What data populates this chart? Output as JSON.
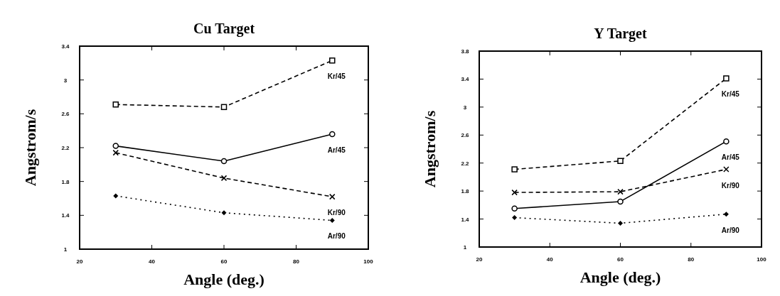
{
  "chart_data": [
    {
      "type": "line",
      "title": "Cu  Target",
      "xlabel": "Angle (deg.)",
      "ylabel": "Angstrom/s",
      "x": [
        30,
        60,
        90
      ],
      "xlim": [
        20,
        100
      ],
      "xticks": [
        20,
        40,
        60,
        80,
        100
      ],
      "ylim": [
        1,
        3.4
      ],
      "yticks": [
        1,
        1.4,
        1.8,
        2.2,
        2.6,
        3,
        3.4
      ],
      "grid": false,
      "legend": false,
      "series": [
        {
          "name": "Kr/45",
          "color": "#000000",
          "values": [
            2.71,
            2.68,
            3.23
          ],
          "marker": "square",
          "line_style": "dashed"
        },
        {
          "name": "Ar/45",
          "color": "#000000",
          "values": [
            2.22,
            2.04,
            2.36
          ],
          "marker": "circle",
          "line_style": "solid"
        },
        {
          "name": "Kr/90",
          "color": "#000000",
          "values": [
            2.14,
            1.84,
            1.62
          ],
          "marker": "cross",
          "line_style": "dashed"
        },
        {
          "name": "Ar/90",
          "color": "#000000",
          "values": [
            1.63,
            1.43,
            1.34
          ],
          "marker": "diamond",
          "line_style": "dotted"
        }
      ]
    },
    {
      "type": "line",
      "title": "Y Target",
      "xlabel": "Angle (deg.)",
      "ylabel": "Angstrom/s",
      "x": [
        30,
        60,
        90
      ],
      "xlim": [
        20,
        100
      ],
      "xticks": [
        20,
        40,
        60,
        80,
        100
      ],
      "ylim": [
        1,
        3.8
      ],
      "yticks": [
        1,
        1.4,
        1.8,
        2.2,
        2.6,
        3,
        3.4,
        3.8
      ],
      "grid": false,
      "legend": false,
      "series": [
        {
          "name": "Kr/45",
          "color": "#000000",
          "values": [
            2.11,
            2.23,
            3.41
          ],
          "marker": "square",
          "line_style": "dashed"
        },
        {
          "name": "Ar/45",
          "color": "#000000",
          "values": [
            1.55,
            1.65,
            2.51
          ],
          "marker": "circle",
          "line_style": "solid"
        },
        {
          "name": "Kr/90",
          "color": "#000000",
          "values": [
            1.78,
            1.79,
            2.11
          ],
          "marker": "cross",
          "line_style": "dashed"
        },
        {
          "name": "Ar/90",
          "color": "#000000",
          "values": [
            1.42,
            1.34,
            1.47
          ],
          "marker": "diamond",
          "line_style": "dotted"
        }
      ]
    }
  ]
}
